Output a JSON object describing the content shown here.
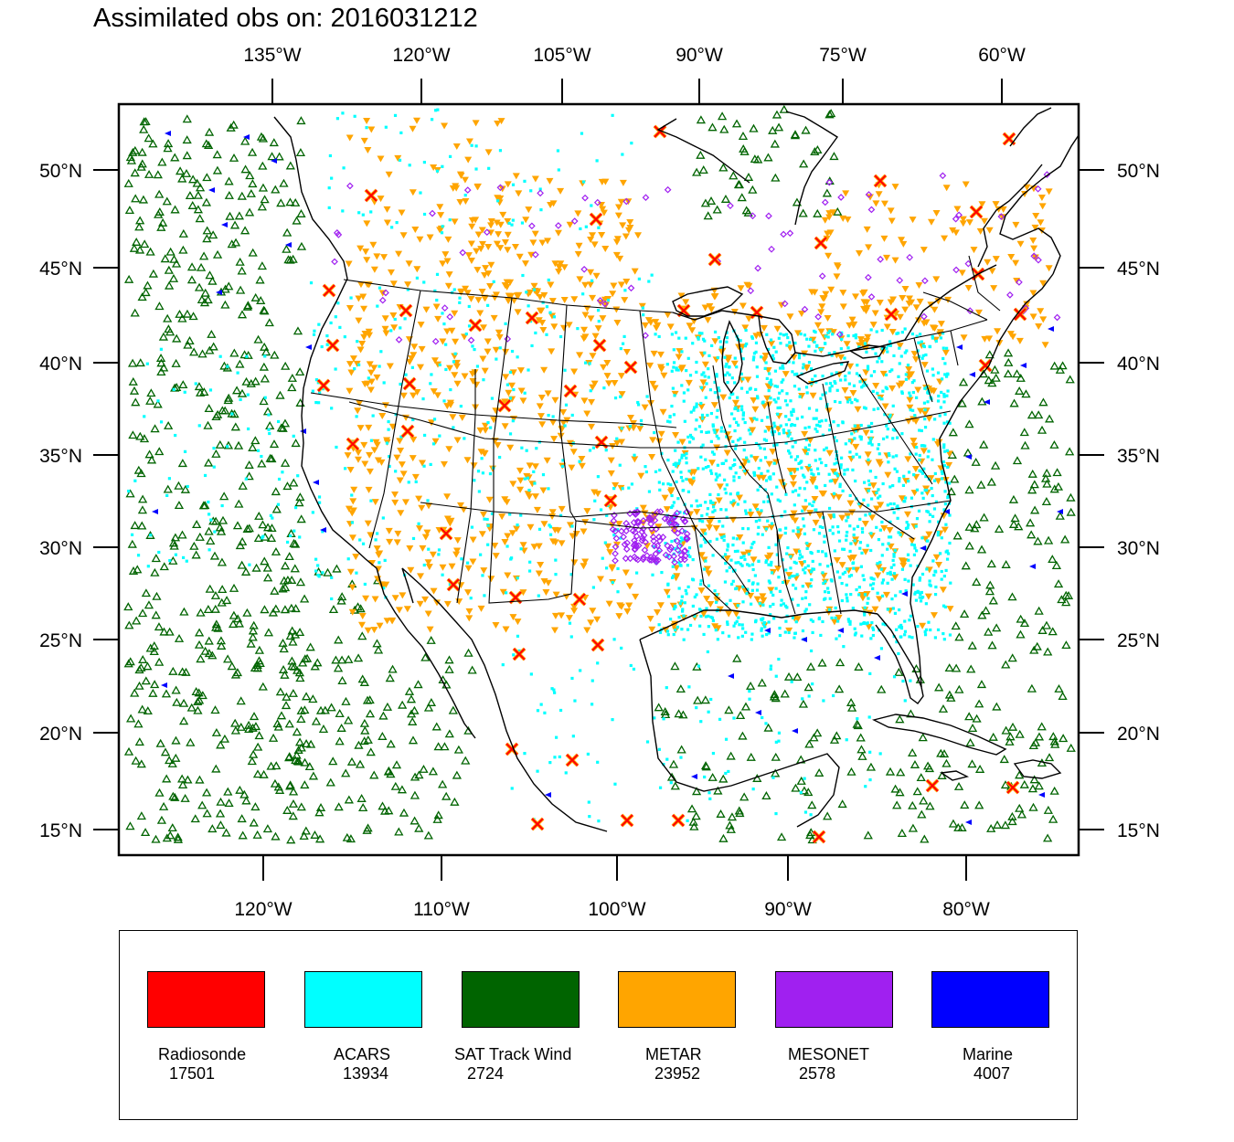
{
  "title": "Assimilated obs on: 2016031212",
  "map": {
    "projection": "lambert-conformal-conus",
    "top_longitude_labels": [
      "135°W",
      "120°W",
      "105°W",
      "90°W",
      "75°W",
      "60°W"
    ],
    "bottom_longitude_labels": [
      "120°W",
      "110°W",
      "100°W",
      "90°W",
      "80°W"
    ],
    "latitude_labels": [
      "50°N",
      "45°N",
      "40°N",
      "35°N",
      "30°N",
      "25°N",
      "20°N",
      "15°N"
    ],
    "region": "Continental United States, southern Canada, Mexico, Gulf of Mexico, Caribbean, NE Pacific and W Atlantic"
  },
  "legend": [
    {
      "name": "Radiosonde",
      "count": "17501",
      "color": "#ff0000",
      "marker": "x-mark-icon"
    },
    {
      "name": "ACARS",
      "count": "13934",
      "color": "#00ffff",
      "marker": "square-dot-icon"
    },
    {
      "name": "SAT Track Wind",
      "count": "2724",
      "color": "#006400",
      "marker": "triangle-up-icon"
    },
    {
      "name": "METAR",
      "count": "23952",
      "color": "#ffa500",
      "marker": "triangle-down-icon"
    },
    {
      "name": "MESONET",
      "count": "2578",
      "color": "#a020f0",
      "marker": "diamond-icon"
    },
    {
      "name": "Marine",
      "count": "4007",
      "color": "#0000ff",
      "marker": "triangle-left-icon"
    }
  ]
}
